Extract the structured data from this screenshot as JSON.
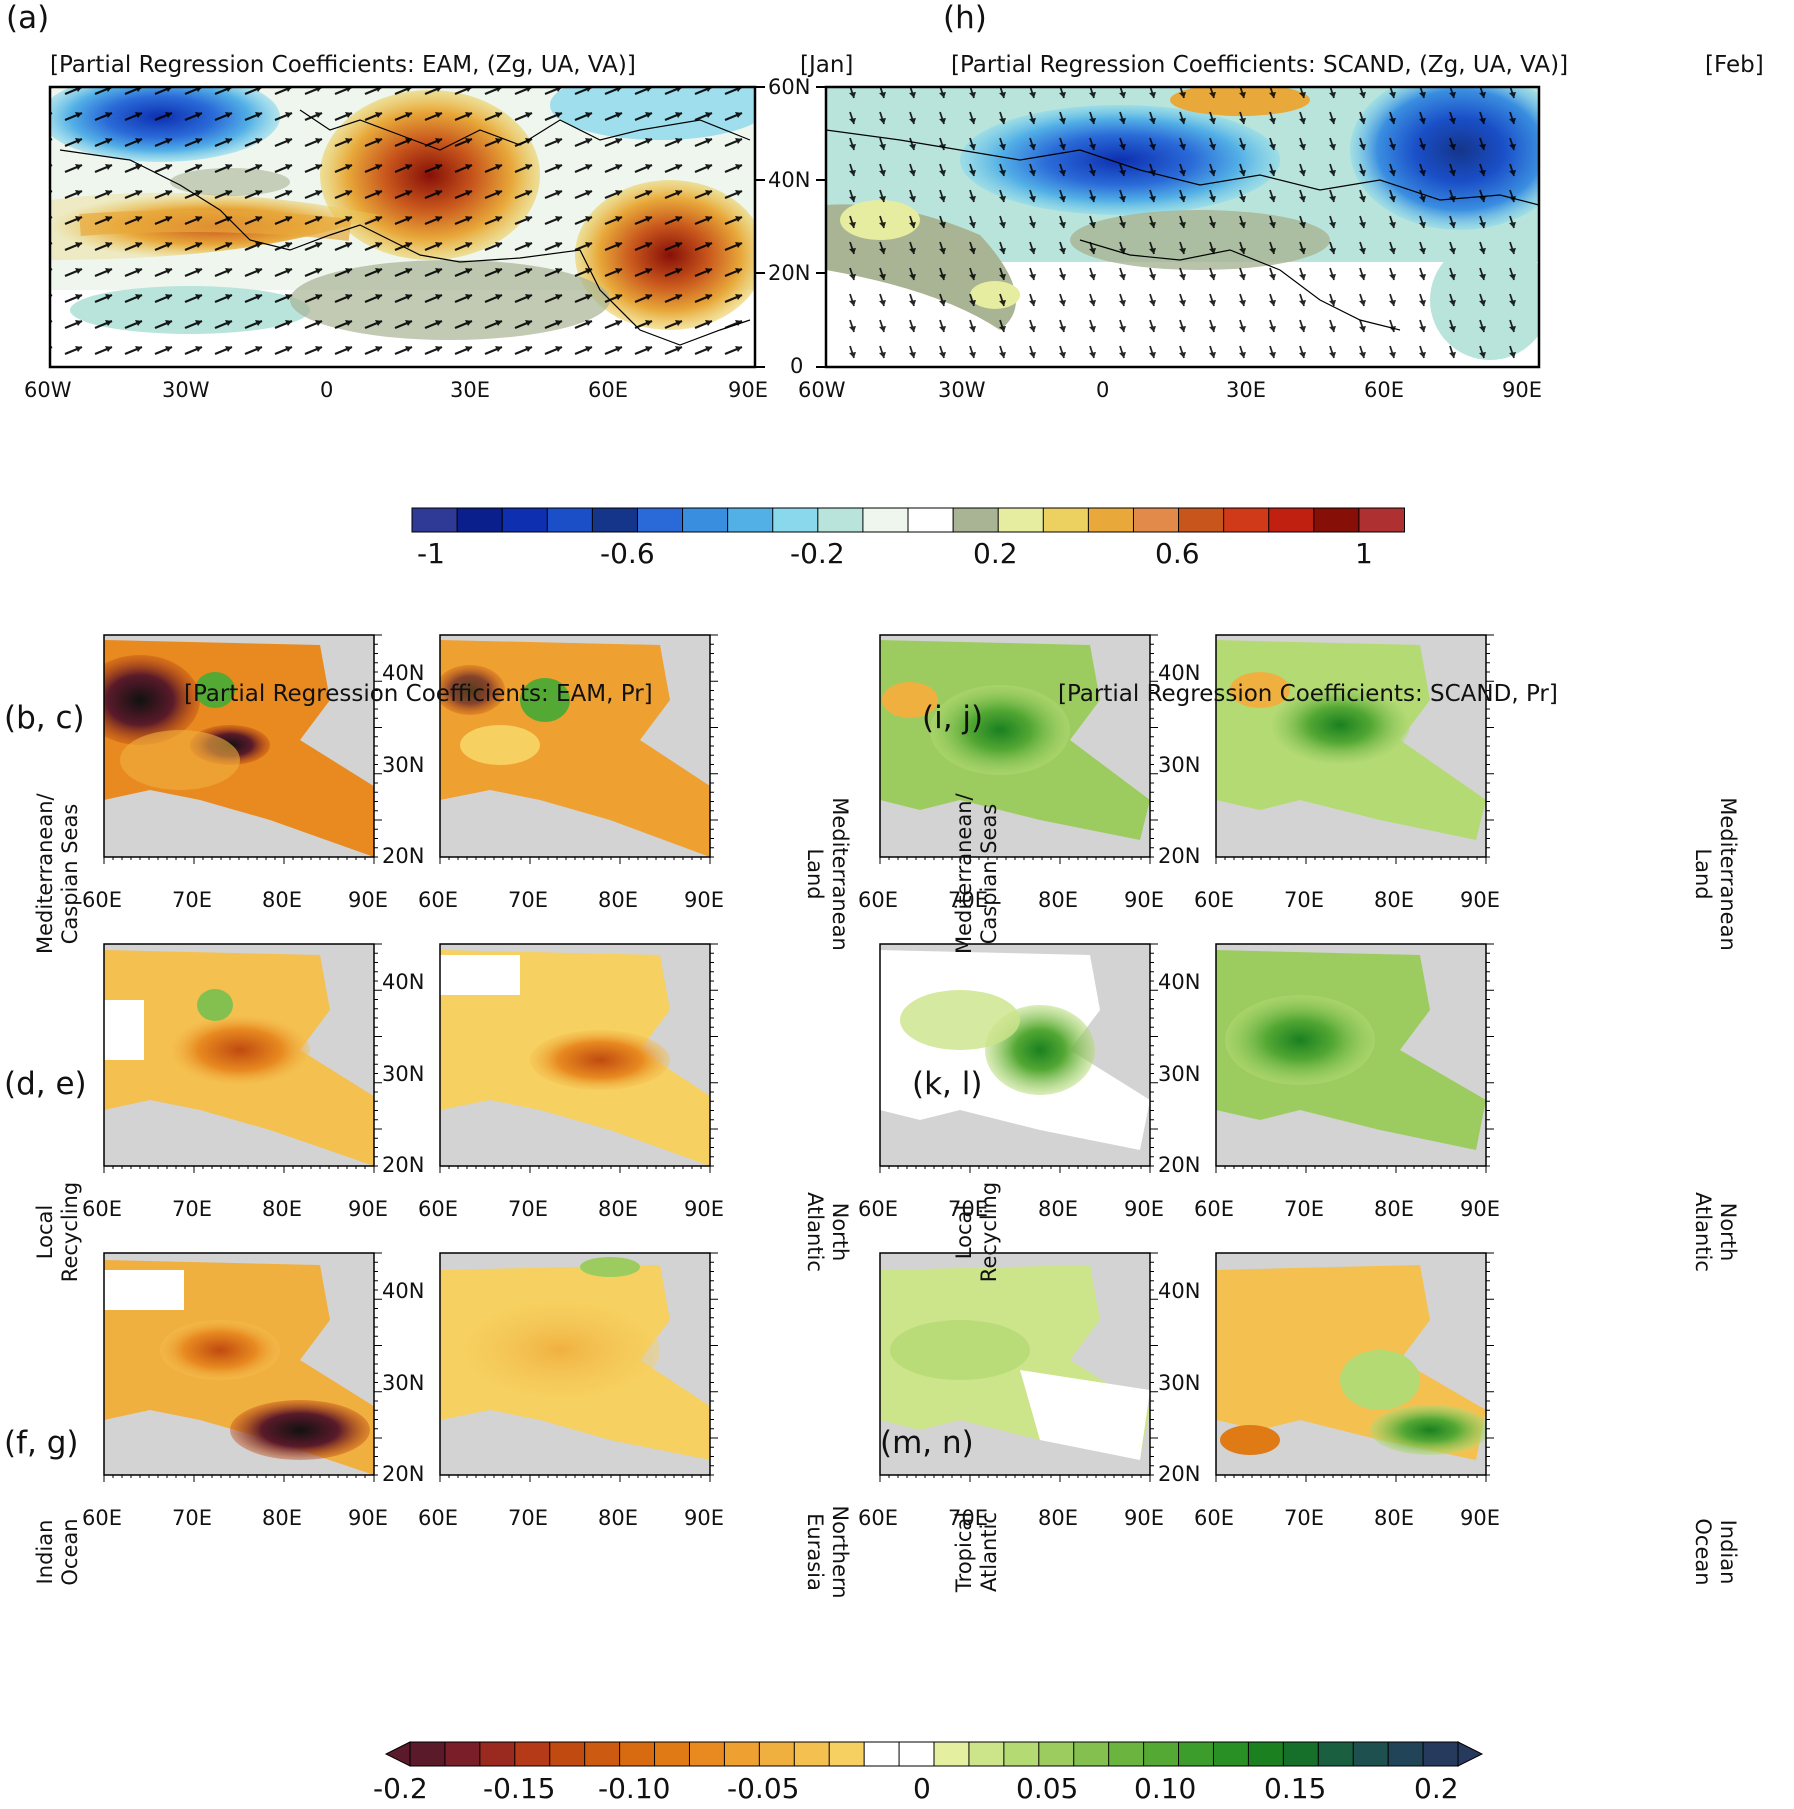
{
  "panels_top": [
    {
      "label": "(a)",
      "title": "[Partial Regression Coefficients: EAM, (Zg, UA, VA)]",
      "month": "[Jan]"
    },
    {
      "label": "(h)",
      "title": "[Partial Regression Coefficients: SCAND, (Zg, UA, VA)]",
      "month": "[Feb]"
    }
  ],
  "top_lon_ticks": [
    "60W",
    "30W",
    "0",
    "30E",
    "60E",
    "90E"
  ],
  "top_lat_ticks": [
    "60N",
    "40N",
    "20N",
    "0"
  ],
  "colorbar1": {
    "ticks": [
      "-1",
      "-0.6",
      "-0.2",
      "0.2",
      "0.6",
      "1"
    ],
    "colors": [
      "#2e3a96",
      "#0a1e8c",
      "#0d2fb0",
      "#1a4fc8",
      "#14358a",
      "#2a6ad8",
      "#3a8ee0",
      "#53b0e6",
      "#8ad8ec",
      "#b8e4dc",
      "#eef6ee",
      "#ffffff",
      "#a8b494",
      "#e6eca0",
      "#ecd060",
      "#e8a83a",
      "#e28a4a",
      "#c8561c",
      "#d03a18",
      "#c02010",
      "#861008",
      "#ae3030"
    ]
  },
  "bottom_titles": [
    "[Partial Regression Coefficients: EAM, Pr]",
    "[Partial Regression Coefficients: SCAND, Pr]"
  ],
  "row_labels": {
    "left": [
      "(b, c)",
      "(d, e)",
      "(f, g)"
    ],
    "right": [
      "(i, j)",
      "(k, l)",
      "(m, n)"
    ]
  },
  "side_labels": {
    "l1a": "Mediterranean/",
    "l1b": "Caspian Seas",
    "l2a": "Local",
    "l2b": "Recycling",
    "l3a": "Indian",
    "l3b": "Ocean",
    "r1a": "Mediterranean",
    "r1b": "Land",
    "r2a": "North",
    "r2b": "Atlantic",
    "r3a": "Northern",
    "r3b": "Eurasia",
    "s1a": "Mediterranean/",
    "s1b": "Caspian Seas",
    "s2a": "Local",
    "s2b": "Recycling",
    "s3a": "Tropical",
    "s3b": "Atlantic",
    "t1a": "Mediterranean",
    "t1b": "Land",
    "t2a": "North",
    "t2b": "Atlantic",
    "t3a": "Indian",
    "t3b": "Ocean"
  },
  "small_lon_ticks": [
    "60E",
    "70E",
    "80E",
    "90E"
  ],
  "small_lat_ticks": [
    "40N",
    "30N",
    "20N"
  ],
  "colorbar2": {
    "ticks": [
      "-0.2",
      "-0.15",
      "-0.10",
      "-0.05",
      "0",
      "0.05",
      "0.10",
      "0.15",
      "0.2"
    ],
    "colors": [
      "#5a1a2a",
      "#7a1e2a",
      "#9a2a20",
      "#b43a18",
      "#c04a10",
      "#cc5a10",
      "#d86a10",
      "#e07a14",
      "#e88a20",
      "#eea030",
      "#f0b040",
      "#f4c050",
      "#f6d060",
      "#ffffff",
      "#ffffff",
      "#e4f0a0",
      "#cce48a",
      "#b4da74",
      "#9ccc60",
      "#84c050",
      "#6cb440",
      "#54a834",
      "#3c9c2c",
      "#289024",
      "#1a8020",
      "#16702a",
      "#1a6040",
      "#1e5050",
      "#224458",
      "#263a5e"
    ]
  }
}
